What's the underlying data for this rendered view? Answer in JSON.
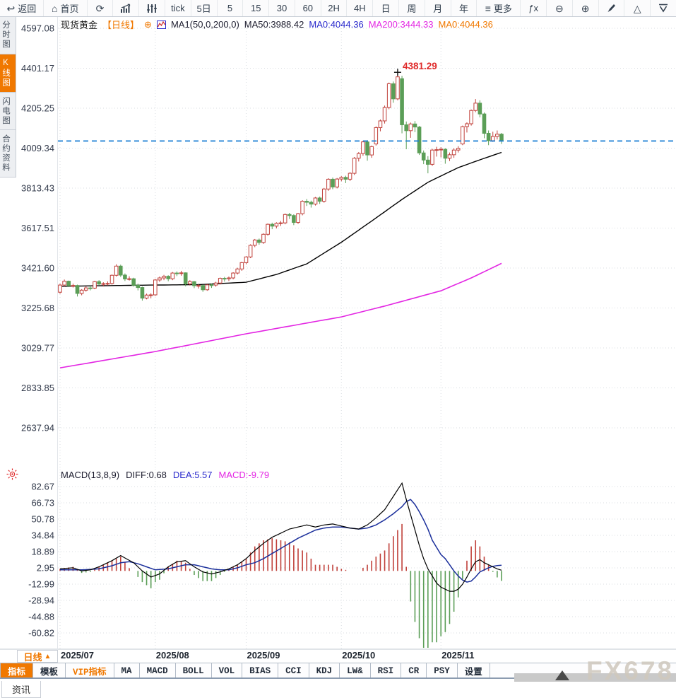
{
  "toolbar": {
    "items": [
      {
        "name": "back",
        "icon": "↩",
        "label": "返回",
        "wide": true
      },
      {
        "name": "home",
        "icon": "⌂",
        "label": "首页",
        "wide": true
      },
      {
        "name": "refresh",
        "icon": "⟳"
      },
      {
        "name": "bar-chart",
        "icon": "svg-bars"
      },
      {
        "name": "candle-style",
        "icon": "svg-sliders"
      },
      {
        "name": "interval-tick",
        "label": "tick"
      },
      {
        "name": "interval-5d",
        "label": "5日"
      },
      {
        "name": "interval-5",
        "label": "5"
      },
      {
        "name": "interval-15",
        "label": "15"
      },
      {
        "name": "interval-30",
        "label": "30"
      },
      {
        "name": "interval-60",
        "label": "60"
      },
      {
        "name": "interval-2h",
        "label": "2H"
      },
      {
        "name": "interval-4h",
        "label": "4H"
      },
      {
        "name": "interval-day",
        "label": "日"
      },
      {
        "name": "interval-week",
        "label": "周"
      },
      {
        "name": "interval-month",
        "label": "月"
      },
      {
        "name": "interval-year",
        "label": "年"
      },
      {
        "name": "more",
        "icon": "≡",
        "label": "更多",
        "wide": true
      },
      {
        "name": "formula-fx",
        "label": "ƒx"
      },
      {
        "name": "zoom-out",
        "icon": "⊖"
      },
      {
        "name": "zoom-in",
        "icon": "⊕"
      },
      {
        "name": "draw",
        "icon": "svg-pencil"
      },
      {
        "name": "scroll-up",
        "icon": "△"
      },
      {
        "name": "collapse",
        "icon": "svg-vline"
      }
    ]
  },
  "sidebar": {
    "items": [
      {
        "name": "time-chart",
        "label": "分时图",
        "active": false
      },
      {
        "name": "kline-chart",
        "label": "K线图",
        "active": true
      },
      {
        "name": "lightning-chart",
        "label": "闪电图",
        "active": false
      },
      {
        "name": "contract-info",
        "label": "合约资料",
        "active": false
      }
    ]
  },
  "header": {
    "symbol": "现货黄金",
    "period": "【日线】",
    "add_symbol": "⊕",
    "ma_settings": "MA1(50,0,200,0)",
    "ma50": "MA50:3988.42",
    "ma0_blue": "MA0:4044.36",
    "ma200": "MA200:3444.33",
    "ma0_orange": "MA0:4044.36"
  },
  "macd_header": {
    "params": "MACD(13,8,9)",
    "diff": "DIFF:0.68",
    "dea": "DEA:5.57",
    "macd": "MACD:-9.79"
  },
  "footer": {
    "period_label": "日线",
    "period_arrow": "▲",
    "tabs": [
      {
        "label": "指标",
        "style": "active"
      },
      {
        "label": "模板",
        "style": ""
      },
      {
        "label": "VIP指标",
        "style": "vip"
      },
      {
        "label": "MA",
        "style": ""
      },
      {
        "label": "MACD",
        "style": ""
      },
      {
        "label": "BOLL",
        "style": ""
      },
      {
        "label": "VOL",
        "style": ""
      },
      {
        "label": "BIAS",
        "style": ""
      },
      {
        "label": "CCI",
        "style": ""
      },
      {
        "label": "KDJ",
        "style": ""
      },
      {
        "label": "LW&",
        "style": ""
      },
      {
        "label": "RSI",
        "style": ""
      },
      {
        "label": "CR",
        "style": ""
      },
      {
        "label": "PSY",
        "style": ""
      },
      {
        "label": "设置",
        "style": ""
      }
    ],
    "news_tab": "资讯",
    "watermark": "FX678"
  },
  "chart_data": {
    "type": "candlestick+macd",
    "title": "现货黄金 日线",
    "price_axis": {
      "ticks": [
        4597.08,
        4401.17,
        4205.25,
        4009.34,
        3813.43,
        3617.51,
        3421.6,
        3225.68,
        3029.77,
        2833.85,
        2637.94
      ]
    },
    "macd_axis": {
      "ticks": [
        82.67,
        66.73,
        50.78,
        34.84,
        18.89,
        2.95,
        -12.99,
        -28.94,
        -44.88,
        -60.82
      ]
    },
    "x_axis": {
      "months": [
        {
          "i": 0,
          "label": "2025/07"
        },
        {
          "i": 22,
          "label": "2025/08"
        },
        {
          "i": 43,
          "label": "2025/09"
        },
        {
          "i": 65,
          "label": "2025/10"
        },
        {
          "i": 88,
          "label": "2025/11"
        }
      ]
    },
    "last_price": 4044.36,
    "annotation": {
      "index": 78,
      "price": 4381.29,
      "label": "4381.29"
    },
    "candles": [
      [
        3303,
        3345,
        3296,
        3338
      ],
      [
        3338,
        3365,
        3332,
        3357
      ],
      [
        3357,
        3360,
        3328,
        3335
      ],
      [
        3335,
        3345,
        3326,
        3336
      ],
      [
        3336,
        3340,
        3282,
        3297
      ],
      [
        3297,
        3318,
        3288,
        3313
      ],
      [
        3313,
        3332,
        3306,
        3324
      ],
      [
        3324,
        3334,
        3312,
        3323
      ],
      [
        3323,
        3359,
        3318,
        3355
      ],
      [
        3355,
        3362,
        3338,
        3343
      ],
      [
        3343,
        3352,
        3331,
        3345
      ],
      [
        3345,
        3356,
        3336,
        3346
      ],
      [
        3346,
        3390,
        3340,
        3386
      ],
      [
        3386,
        3440,
        3380,
        3431
      ],
      [
        3431,
        3438,
        3378,
        3387
      ],
      [
        3387,
        3395,
        3358,
        3368
      ],
      [
        3368,
        3381,
        3360,
        3369
      ],
      [
        3369,
        3374,
        3331,
        3337
      ],
      [
        3337,
        3345,
        3312,
        3326
      ],
      [
        3326,
        3330,
        3262,
        3274
      ],
      [
        3274,
        3296,
        3268,
        3289
      ],
      [
        3289,
        3298,
        3273,
        3290
      ],
      [
        3290,
        3368,
        3285,
        3363
      ],
      [
        3363,
        3380,
        3354,
        3373
      ],
      [
        3373,
        3388,
        3362,
        3381
      ],
      [
        3381,
        3386,
        3357,
        3369
      ],
      [
        3369,
        3402,
        3362,
        3397
      ],
      [
        3397,
        3405,
        3382,
        3395
      ],
      [
        3395,
        3408,
        3384,
        3398
      ],
      [
        3398,
        3400,
        3332,
        3344
      ],
      [
        3344,
        3362,
        3336,
        3355
      ],
      [
        3355,
        3358,
        3323,
        3335
      ],
      [
        3335,
        3344,
        3321,
        3336
      ],
      [
        3336,
        3340,
        3305,
        3315
      ],
      [
        3315,
        3342,
        3310,
        3339
      ],
      [
        3339,
        3346,
        3324,
        3338
      ],
      [
        3338,
        3354,
        3330,
        3348
      ],
      [
        3348,
        3375,
        3341,
        3371
      ],
      [
        3371,
        3378,
        3355,
        3369
      ],
      [
        3369,
        3380,
        3358,
        3373
      ],
      [
        3373,
        3401,
        3366,
        3397
      ],
      [
        3397,
        3423,
        3390,
        3417
      ],
      [
        3417,
        3452,
        3408,
        3448
      ],
      [
        3448,
        3480,
        3440,
        3476
      ],
      [
        3476,
        3538,
        3470,
        3533
      ],
      [
        3533,
        3564,
        3524,
        3559
      ],
      [
        3559,
        3566,
        3536,
        3547
      ],
      [
        3547,
        3592,
        3540,
        3587
      ],
      [
        3587,
        3640,
        3580,
        3636
      ],
      [
        3636,
        3644,
        3612,
        3627
      ],
      [
        3627,
        3646,
        3616,
        3641
      ],
      [
        3641,
        3652,
        3628,
        3643
      ],
      [
        3643,
        3689,
        3636,
        3684
      ],
      [
        3684,
        3692,
        3662,
        3679
      ],
      [
        3679,
        3685,
        3632,
        3645
      ],
      [
        3645,
        3692,
        3638,
        3688
      ],
      [
        3688,
        3754,
        3680,
        3749
      ],
      [
        3749,
        3760,
        3726,
        3744
      ],
      [
        3744,
        3752,
        3718,
        3735
      ],
      [
        3735,
        3770,
        3728,
        3765
      ],
      [
        3765,
        3772,
        3736,
        3749
      ],
      [
        3749,
        3814,
        3742,
        3809
      ],
      [
        3809,
        3862,
        3800,
        3857
      ],
      [
        3857,
        3865,
        3808,
        3819
      ],
      [
        3819,
        3863,
        3812,
        3858
      ],
      [
        3858,
        3872,
        3847,
        3866
      ],
      [
        3866,
        3874,
        3838,
        3857
      ],
      [
        3857,
        3892,
        3848,
        3886
      ],
      [
        3886,
        3966,
        3878,
        3960
      ],
      [
        3960,
        3990,
        3944,
        3983
      ],
      [
        3983,
        4046,
        3972,
        4040
      ],
      [
        4040,
        4048,
        3948,
        3976
      ],
      [
        3976,
        4022,
        3962,
        4017
      ],
      [
        4030,
        4116,
        4022,
        4110
      ],
      [
        4110,
        4150,
        4092,
        4143
      ],
      [
        4143,
        4218,
        4130,
        4209
      ],
      [
        4209,
        4331,
        4200,
        4325
      ],
      [
        4325,
        4336,
        4232,
        4251
      ],
      [
        4251,
        4381.29,
        4244,
        4359
      ],
      [
        4350,
        4364,
        4082,
        4124
      ],
      [
        4124,
        4140,
        4004,
        4095
      ],
      [
        4095,
        4135,
        4060,
        4128
      ],
      [
        4128,
        4142,
        4088,
        4113
      ],
      [
        4113,
        4118,
        3976,
        3986
      ],
      [
        3986,
        3998,
        3931,
        3951
      ],
      [
        3951,
        3970,
        3886,
        3930
      ],
      [
        3930,
        4006,
        3922,
        4000
      ],
      [
        4000,
        4016,
        3968,
        4002
      ],
      [
        4002,
        4014,
        3964,
        4004
      ],
      [
        4004,
        4008,
        3933,
        3960
      ],
      [
        3960,
        3988,
        3946,
        3977
      ],
      [
        3977,
        4009,
        3962,
        4000
      ],
      [
        4000,
        4019,
        3988,
        4008
      ],
      [
        4030,
        4120,
        4024,
        4115
      ],
      [
        4115,
        4136,
        4086,
        4129
      ],
      [
        4129,
        4199,
        4120,
        4194
      ],
      [
        4194,
        4250,
        4186,
        4230
      ],
      [
        4230,
        4244,
        4160,
        4177
      ],
      [
        4177,
        4184,
        4058,
        4082
      ],
      [
        4082,
        4096,
        4024,
        4046
      ],
      [
        4046,
        4090,
        4040,
        4067
      ],
      [
        4067,
        4096,
        4052,
        4078
      ],
      [
        4078,
        4084,
        4030,
        4044.36
      ]
    ],
    "ma50_anchors": [
      [
        0,
        3332
      ],
      [
        10,
        3335
      ],
      [
        21,
        3338
      ],
      [
        32,
        3340
      ],
      [
        43,
        3352
      ],
      [
        50,
        3390
      ],
      [
        57,
        3442
      ],
      [
        65,
        3548
      ],
      [
        72,
        3652
      ],
      [
        79,
        3758
      ],
      [
        85,
        3842
      ],
      [
        92,
        3914
      ],
      [
        97,
        3952
      ],
      [
        102,
        3988.42
      ]
    ],
    "ma200_anchors": [
      [
        0,
        2932
      ],
      [
        22,
        3012
      ],
      [
        43,
        3099
      ],
      [
        65,
        3182
      ],
      [
        75,
        3235
      ],
      [
        88,
        3310
      ],
      [
        95,
        3373
      ],
      [
        102,
        3444.33
      ]
    ],
    "macd": {
      "diff_anchors": [
        [
          0,
          2
        ],
        [
          3,
          3
        ],
        [
          5,
          0
        ],
        [
          7,
          1
        ],
        [
          9,
          4
        ],
        [
          12,
          10
        ],
        [
          14,
          15
        ],
        [
          17,
          8
        ],
        [
          19,
          0
        ],
        [
          21,
          -6
        ],
        [
          23,
          -3
        ],
        [
          25,
          4
        ],
        [
          27,
          9
        ],
        [
          29,
          10
        ],
        [
          31,
          4
        ],
        [
          33,
          -1
        ],
        [
          35,
          -3
        ],
        [
          37,
          -1
        ],
        [
          39,
          2
        ],
        [
          41,
          6
        ],
        [
          43,
          12
        ],
        [
          45,
          20
        ],
        [
          47,
          27
        ],
        [
          49,
          33
        ],
        [
          51,
          37
        ],
        [
          53,
          41
        ],
        [
          55,
          43
        ],
        [
          57,
          45
        ],
        [
          59,
          43
        ],
        [
          61,
          45
        ],
        [
          63,
          46
        ],
        [
          65,
          44
        ],
        [
          67,
          42
        ],
        [
          69,
          41
        ],
        [
          71,
          45
        ],
        [
          73,
          52
        ],
        [
          75,
          60
        ],
        [
          77,
          73
        ],
        [
          79,
          86
        ],
        [
          80,
          70
        ],
        [
          81,
          55
        ],
        [
          82,
          40
        ],
        [
          83,
          25
        ],
        [
          84,
          12
        ],
        [
          85,
          2
        ],
        [
          86,
          -5
        ],
        [
          87,
          -12
        ],
        [
          88,
          -16
        ],
        [
          89,
          -18
        ],
        [
          90,
          -20
        ],
        [
          91,
          -20
        ],
        [
          92,
          -18
        ],
        [
          93,
          -13
        ],
        [
          94,
          -6
        ],
        [
          95,
          2
        ],
        [
          96,
          9
        ],
        [
          97,
          11
        ],
        [
          98,
          8
        ],
        [
          99,
          6
        ],
        [
          100,
          4
        ],
        [
          101,
          2
        ],
        [
          102,
          0.68
        ]
      ],
      "dea_anchors": [
        [
          0,
          1
        ],
        [
          5,
          1
        ],
        [
          9,
          2
        ],
        [
          12,
          5
        ],
        [
          14,
          8
        ],
        [
          16,
          9
        ],
        [
          18,
          7
        ],
        [
          20,
          4
        ],
        [
          22,
          1
        ],
        [
          25,
          2
        ],
        [
          27,
          4
        ],
        [
          29,
          6
        ],
        [
          31,
          6
        ],
        [
          33,
          4
        ],
        [
          35,
          2
        ],
        [
          37,
          1
        ],
        [
          39,
          1
        ],
        [
          41,
          3
        ],
        [
          43,
          6
        ],
        [
          45,
          8
        ],
        [
          47,
          12
        ],
        [
          49,
          17
        ],
        [
          51,
          22
        ],
        [
          53,
          27
        ],
        [
          55,
          32
        ],
        [
          57,
          36
        ],
        [
          59,
          40
        ],
        [
          61,
          42
        ],
        [
          63,
          43
        ],
        [
          65,
          43
        ],
        [
          67,
          42
        ],
        [
          69,
          41
        ],
        [
          71,
          42
        ],
        [
          73,
          45
        ],
        [
          75,
          50
        ],
        [
          77,
          56
        ],
        [
          79,
          63
        ],
        [
          80,
          68
        ],
        [
          81,
          70
        ],
        [
          82,
          65
        ],
        [
          83,
          58
        ],
        [
          84,
          50
        ],
        [
          85,
          41
        ],
        [
          86,
          30
        ],
        [
          87,
          23
        ],
        [
          88,
          16
        ],
        [
          89,
          12
        ],
        [
          90,
          6
        ],
        [
          91,
          0
        ],
        [
          92,
          -5
        ],
        [
          93,
          -9
        ],
        [
          94,
          -11
        ],
        [
          95,
          -10
        ],
        [
          96,
          -6
        ],
        [
          97,
          -1
        ],
        [
          98,
          1
        ],
        [
          99,
          3
        ],
        [
          100,
          4.5
        ],
        [
          101,
          5.2
        ],
        [
          102,
          5.57
        ]
      ]
    },
    "colors": {
      "up": "#c0403a",
      "down": "#5b9e57",
      "ma50": "#000000",
      "ma200": "#e326e3",
      "diff": "#000000",
      "dea": "#1b2f9b",
      "last_price_line": "#1b7fd4",
      "annotation": "#e02a2a",
      "grid": "#d9dde2",
      "accent": "#f07800",
      "axis_text": "#31394a"
    }
  }
}
